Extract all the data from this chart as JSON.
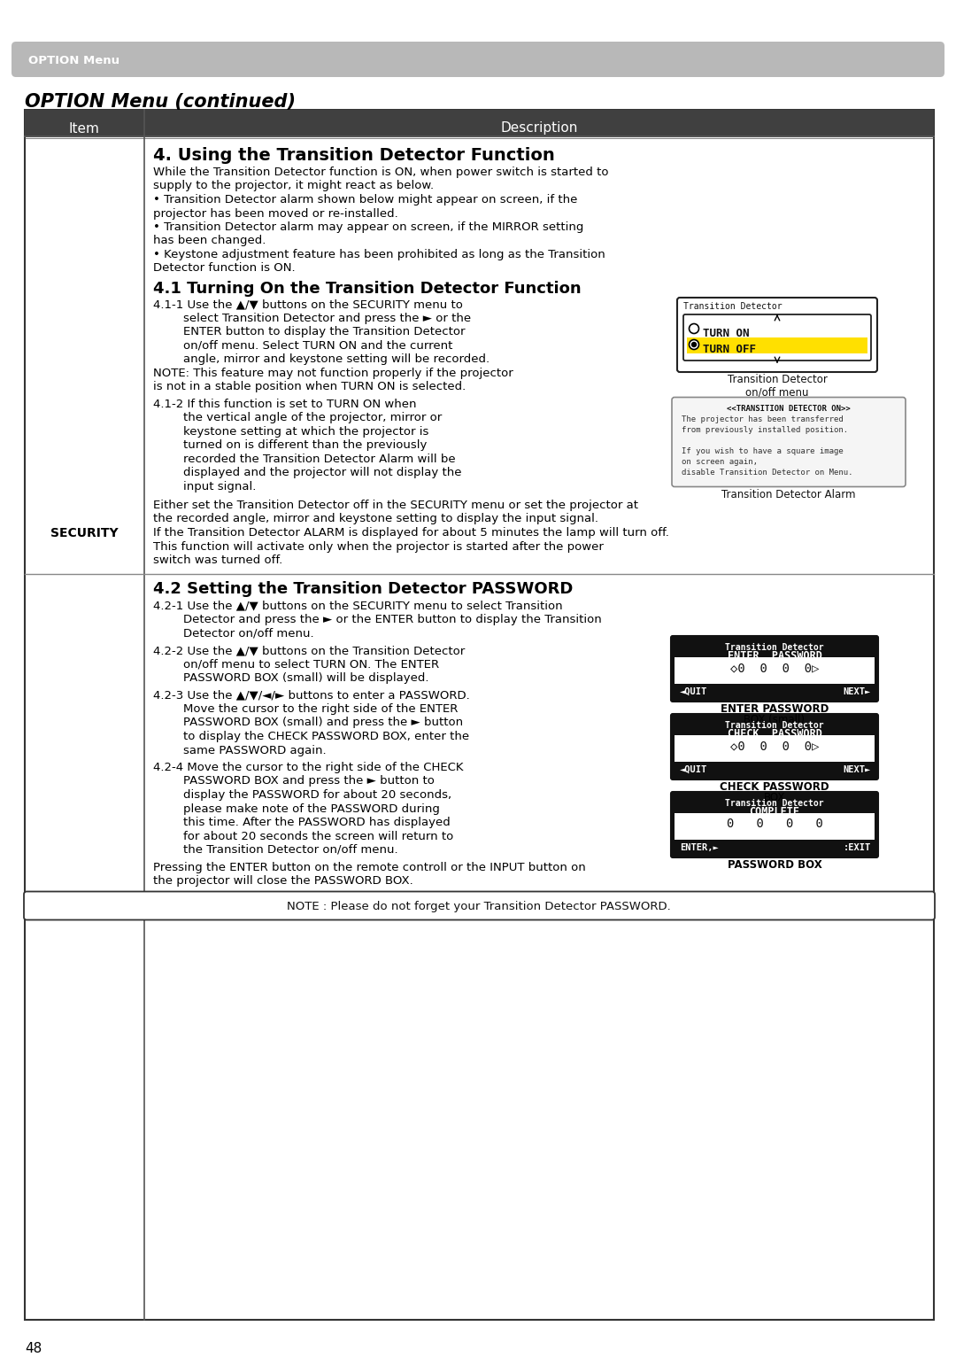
{
  "bg_color": "#ffffff",
  "header_bar_color": "#b8b8b8",
  "header_bar_text": "OPTION Menu",
  "header_bar_text_color": "#ffffff",
  "title": "OPTION Menu (continued)",
  "table_header_bg": "#404040",
  "table_header_text_color": "#ffffff",
  "col1_header": "Item",
  "col2_header": "Description",
  "item_label": "SECURITY",
  "section4_title": "4. Using the Transition Detector Function",
  "section4_body_lines": [
    "While the Transition Detector function is ON, when power switch is started to",
    "supply to the projector, it might react as below.",
    "• Transition Detector alarm shown below might appear on screen, if the",
    "projector has been moved or re-installed.",
    "• Transition Detector alarm may appear on screen, if the MIRROR setting",
    "has been changed.",
    "• Keystone adjustment feature has been prohibited as long as the Transition",
    "Detector function is ON."
  ],
  "section41_title": "4.1 Turning On the Transition Detector Function",
  "step411_lines": [
    "4.1-1 Use the ▲/▼ buttons on the SECURITY menu to",
    "        select Transition Detector and press the ► or the",
    "        ENTER button to display the Transition Detector",
    "        on/off menu. Select TURN ON and the current",
    "        angle, mirror and keystone setting will be recorded."
  ],
  "step411_note_lines": [
    "NOTE: This feature may not function properly if the projector",
    "is not in a stable position when TURN ON is selected."
  ],
  "step412_lines": [
    "4.1-2 If this function is set to TURN ON when",
    "        the vertical angle of the projector, mirror or",
    "        keystone setting at which the projector is",
    "        turned on is different than the previously",
    "        recorded the Transition Detector Alarm will be",
    "        displayed and the projector will not display the",
    "        input signal."
  ],
  "para_security1_lines": [
    "Either set the Transition Detector off in the SECURITY menu or set the projector at",
    "the recorded angle, mirror and keystone setting to display the input signal.",
    "If the Transition Detector ALARM is displayed for about 5 minutes the lamp will turn off.",
    "This function will activate only when the projector is started after the power",
    "switch was turned off."
  ],
  "section42_title": "4.2 Setting the Transition Detector PASSWORD",
  "step421_lines": [
    "4.2-1 Use the ▲/▼ buttons on the SECURITY menu to select Transition",
    "        Detector and press the ► or the ENTER button to display the Transition",
    "        Detector on/off menu."
  ],
  "step422_lines": [
    "4.2-2 Use the ▲/▼ buttons on the Transition Detector",
    "        on/off menu to select TURN ON. The ENTER",
    "        PASSWORD BOX (small) will be displayed."
  ],
  "step423_lines": [
    "4.2-3 Use the ▲/▼/◄/► buttons to enter a PASSWORD.",
    "        Move the cursor to the right side of the ENTER",
    "        PASSWORD BOX (small) and press the ► button",
    "        to display the CHECK PASSWORD BOX, enter the",
    "        same PASSWORD again."
  ],
  "step424_lines": [
    "4.2-4 Move the cursor to the right side of the CHECK",
    "        PASSWORD BOX and press the ► button to",
    "        display the PASSWORD for about 20 seconds,",
    "        please make note of the PASSWORD during",
    "        this time. After the PASSWORD has displayed",
    "        for about 20 seconds the screen will return to",
    "        the Transition Detector on/off menu."
  ],
  "para_security2_lines": [
    "Pressing the ENTER button on the remote controll or the INPUT button on",
    "the projector will close the PASSWORD BOX."
  ],
  "note_bottom": "NOTE : Please do not forget your Transition Detector PASSWORD.",
  "page_number": "48"
}
